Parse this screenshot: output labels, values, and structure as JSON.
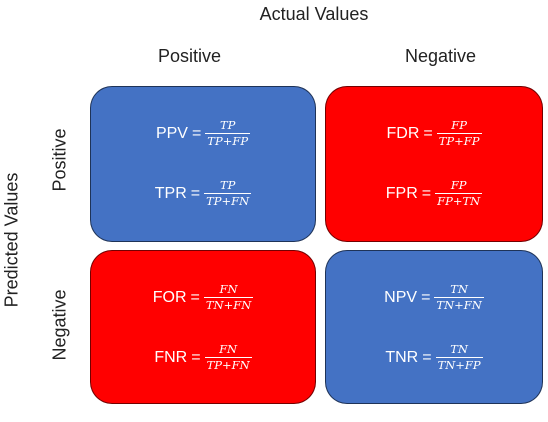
{
  "axes": {
    "actual_title": "Actual Values",
    "predicted_title": "Predicted Values",
    "col_positive": "Positive",
    "col_negative": "Negative",
    "row_positive": "Positive",
    "row_negative": "Negative"
  },
  "colors": {
    "blue": "#4472c4",
    "red": "#ff0000"
  },
  "cells": {
    "tp": {
      "color": "#4472c4",
      "metrics": [
        {
          "name": "PPV",
          "num": "TP",
          "den": "TP+FP"
        },
        {
          "name": "TPR",
          "num": "TP",
          "den": "TP+FN"
        }
      ]
    },
    "fp": {
      "color": "#ff0000",
      "metrics": [
        {
          "name": "FDR",
          "num": "FP",
          "den": "TP+FP"
        },
        {
          "name": "FPR",
          "num": "FP",
          "den": "FP+TN"
        }
      ]
    },
    "fn": {
      "color": "#ff0000",
      "metrics": [
        {
          "name": "FOR",
          "num": "FN",
          "den": "TN+FN"
        },
        {
          "name": "FNR",
          "num": "FN",
          "den": "TP+FN"
        }
      ]
    },
    "tn": {
      "color": "#4472c4",
      "metrics": [
        {
          "name": "NPV",
          "num": "TN",
          "den": "TN+FN"
        },
        {
          "name": "TNR",
          "num": "TN",
          "den": "TN+FP"
        }
      ]
    }
  }
}
